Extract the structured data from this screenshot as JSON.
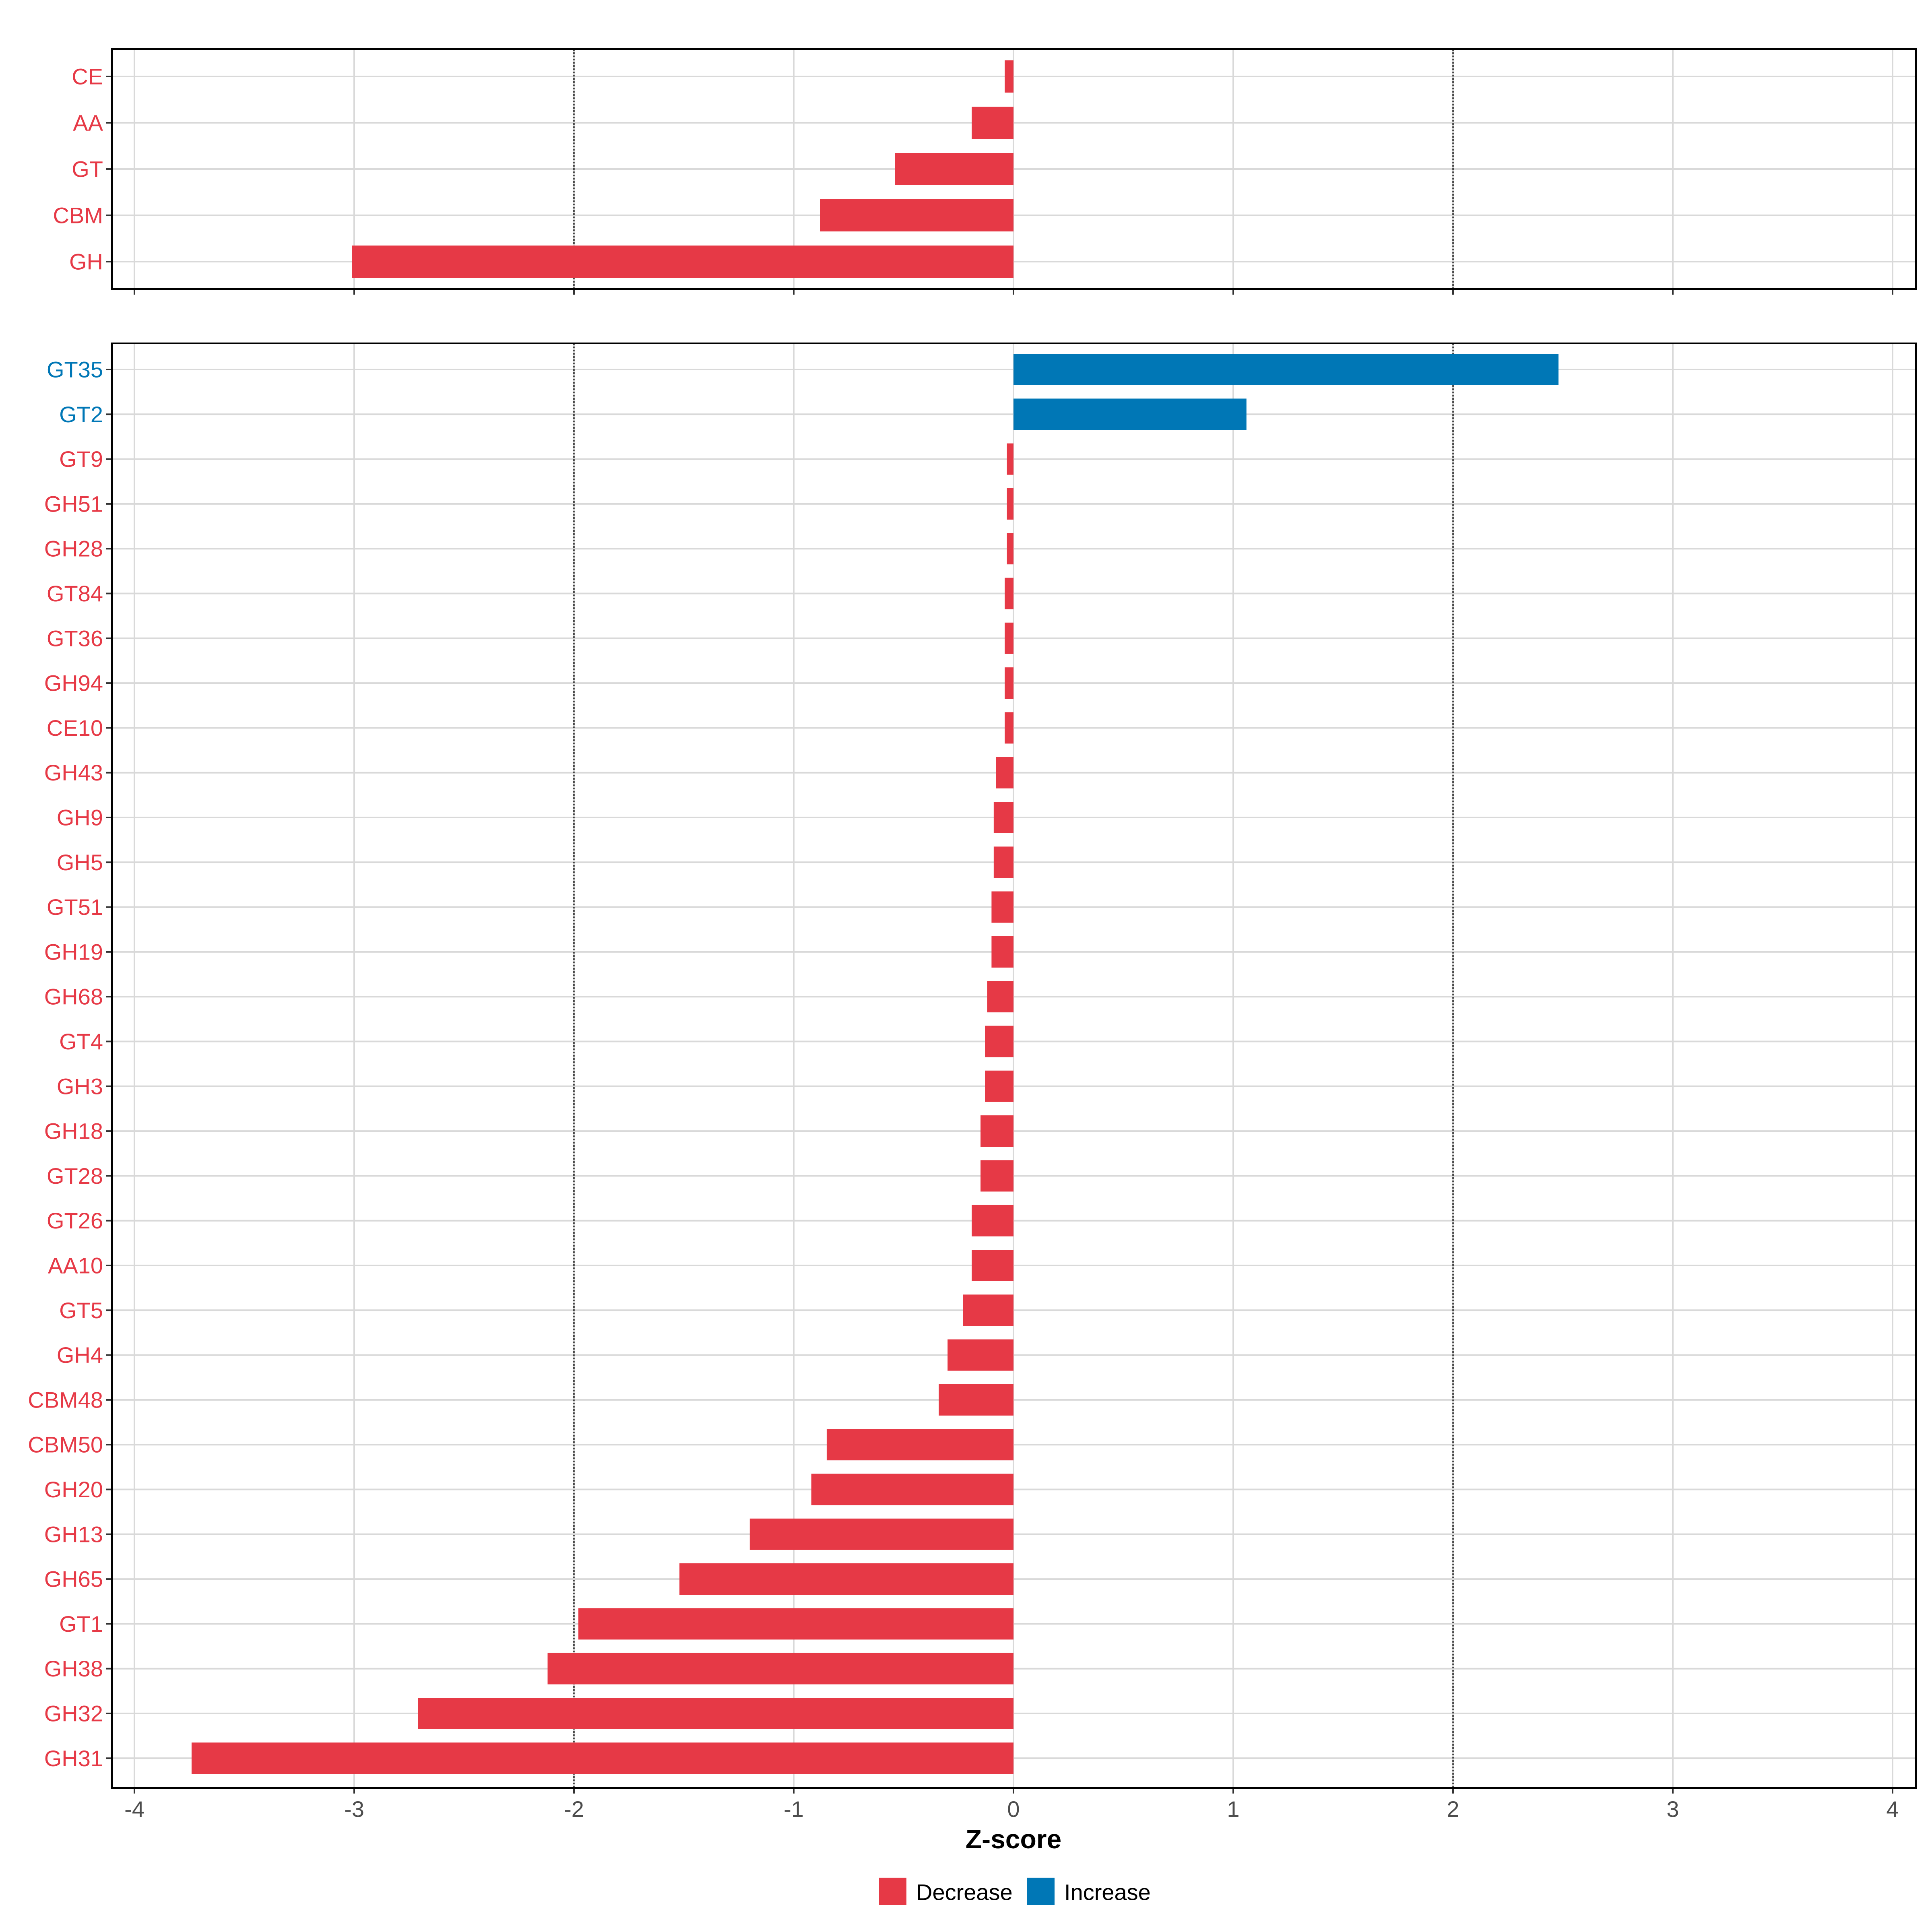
{
  "chart_data": [
    {
      "type": "bar",
      "orientation": "horizontal",
      "panel": "top",
      "categories": [
        "CE",
        "AA",
        "GT",
        "CBM",
        "GH"
      ],
      "values": [
        -0.04,
        -0.19,
        -0.54,
        -0.88,
        -3.01
      ],
      "xlim": [
        -4.1,
        4.1
      ],
      "xticks": [
        -4,
        -3,
        -2,
        -1,
        0,
        1,
        2,
        3,
        4
      ],
      "reference_lines": [
        -2,
        2
      ]
    },
    {
      "type": "bar",
      "orientation": "horizontal",
      "panel": "bottom",
      "categories": [
        "GT35",
        "GT2",
        "GT9",
        "GH51",
        "GH28",
        "GT84",
        "GT36",
        "GH94",
        "CE10",
        "GH43",
        "GH9",
        "GH5",
        "GT51",
        "GH19",
        "GH68",
        "GT4",
        "GH3",
        "GH18",
        "GT28",
        "GT26",
        "AA10",
        "GT5",
        "GH4",
        "CBM48",
        "CBM50",
        "GH20",
        "GH13",
        "GH65",
        "GT1",
        "GH38",
        "GH32",
        "GH31"
      ],
      "values": [
        2.48,
        1.06,
        -0.03,
        -0.03,
        -0.03,
        -0.04,
        -0.04,
        -0.04,
        -0.04,
        -0.08,
        -0.09,
        -0.09,
        -0.1,
        -0.1,
        -0.12,
        -0.13,
        -0.13,
        -0.15,
        -0.15,
        -0.19,
        -0.19,
        -0.23,
        -0.3,
        -0.34,
        -0.85,
        -0.92,
        -1.2,
        -1.52,
        -1.98,
        -2.12,
        -2.71,
        -3.74
      ],
      "xlim": [
        -4.1,
        4.1
      ],
      "xticks": [
        -4,
        -3,
        -2,
        -1,
        0,
        1,
        2,
        3,
        4
      ],
      "reference_lines": [
        -2,
        2
      ],
      "xlabel": "Z-score"
    }
  ],
  "legend": {
    "position": "bottom",
    "entries": [
      {
        "label": "Decrease",
        "color": "#e63946"
      },
      {
        "label": "Increase",
        "color": "#0077b6"
      }
    ]
  },
  "colors": {
    "decrease": "#e63946",
    "increase": "#0077b6",
    "grid": "#d9d9d9"
  }
}
